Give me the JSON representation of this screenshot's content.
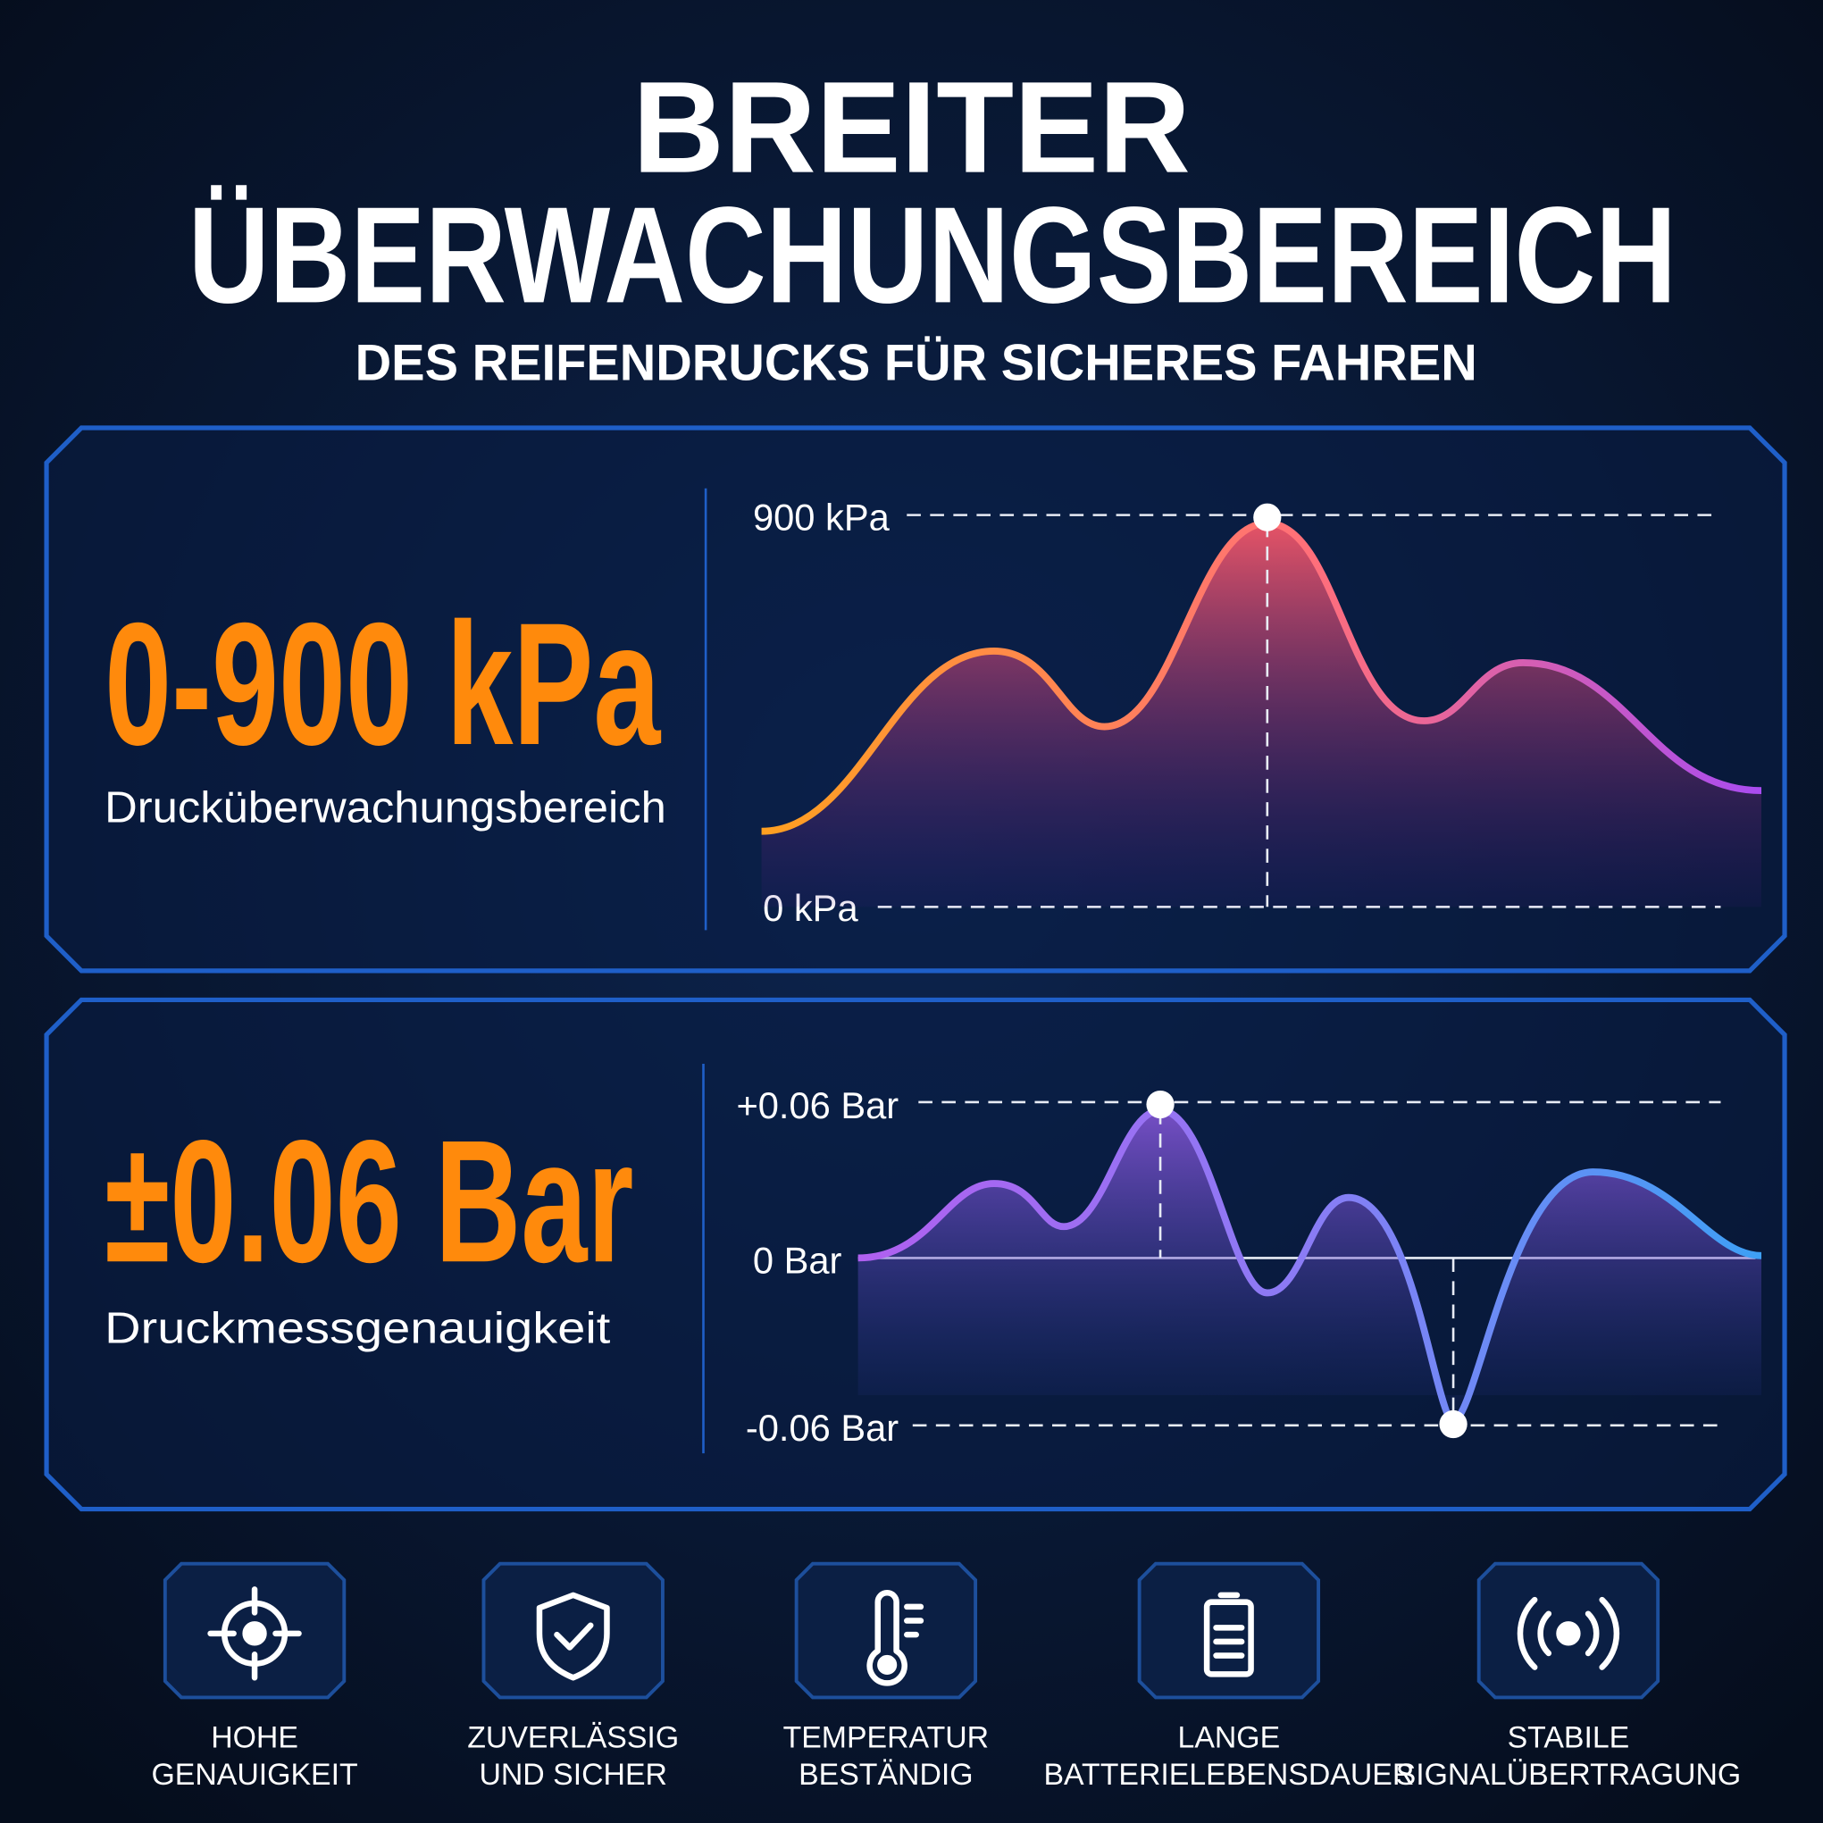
{
  "header": {
    "title": [
      "BREITER",
      "ÜBERWACHUNGSBEREICH"
    ],
    "subtitle": "DES REIFENDRUCKS FÜR SICHERES FAHREN"
  },
  "panels": [
    {
      "value": "0-900 kPa",
      "label": "Drucküberwachungsbereich",
      "axis_labels": [
        "900 kPa",
        "0 kPa"
      ]
    },
    {
      "value": "±0.06 Bar",
      "label": "Druckmessgenauigkeit",
      "axis_labels": [
        "+0.06 Bar",
        "0 Bar",
        "-0.06 Bar"
      ]
    }
  ],
  "features": [
    {
      "lines": [
        "HOHE",
        "GENAUIGKEIT"
      ]
    },
    {
      "lines": [
        "ZUVERLÄSSIG",
        "UND SICHER"
      ]
    },
    {
      "lines": [
        "TEMPERATUR",
        "BESTÄNDIG"
      ]
    },
    {
      "lines": [
        "LANGE",
        "BATTERIELEBENSDAUER"
      ]
    },
    {
      "lines": [
        "STABILE",
        "SIGNALÜBERTRAGUNG"
      ]
    }
  ]
}
